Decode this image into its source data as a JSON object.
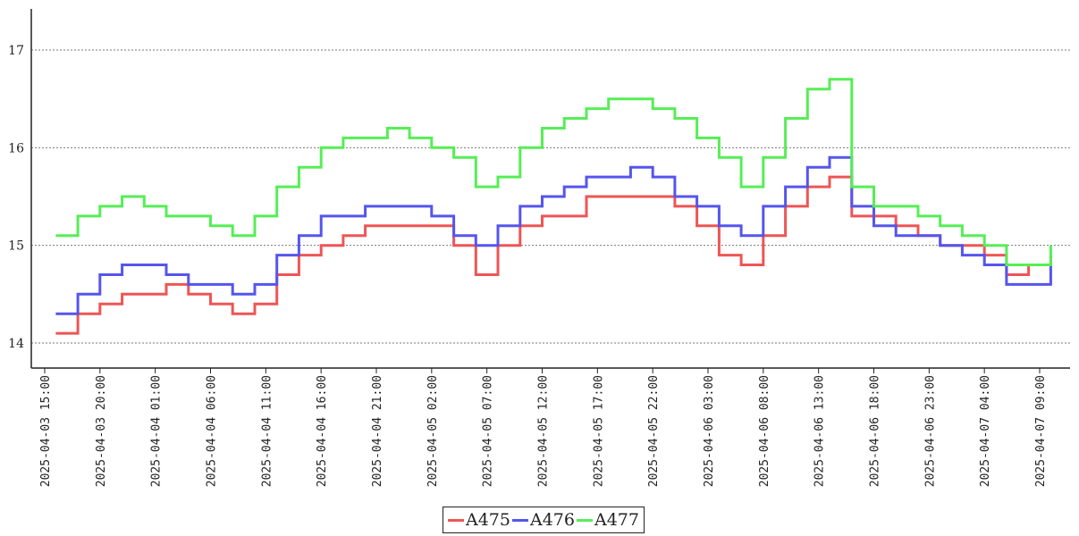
{
  "chart_data": {
    "type": "line",
    "step": true,
    "title": "",
    "xlabel": "",
    "ylabel": "",
    "ylim": [
      13.7,
      17.4
    ],
    "yticks": [
      14,
      15,
      16,
      17
    ],
    "grid": "horizontal dotted",
    "legend_position": "bottom-center",
    "x": [
      "2025-04-03 16:00",
      "2025-04-03 18:00",
      "2025-04-03 20:00",
      "2025-04-03 22:00",
      "2025-04-04 00:00",
      "2025-04-04 02:00",
      "2025-04-04 04:00",
      "2025-04-04 06:00",
      "2025-04-04 08:00",
      "2025-04-04 10:00",
      "2025-04-04 12:00",
      "2025-04-04 14:00",
      "2025-04-04 16:00",
      "2025-04-04 18:00",
      "2025-04-04 20:00",
      "2025-04-04 22:00",
      "2025-04-05 00:00",
      "2025-04-05 02:00",
      "2025-04-05 04:00",
      "2025-04-05 06:00",
      "2025-04-05 08:00",
      "2025-04-05 10:00",
      "2025-04-05 12:00",
      "2025-04-05 14:00",
      "2025-04-05 16:00",
      "2025-04-05 18:00",
      "2025-04-05 20:00",
      "2025-04-05 22:00",
      "2025-04-06 00:00",
      "2025-04-06 02:00",
      "2025-04-06 04:00",
      "2025-04-06 06:00",
      "2025-04-06 08:00",
      "2025-04-06 10:00",
      "2025-04-06 12:00",
      "2025-04-06 14:00",
      "2025-04-06 16:00",
      "2025-04-06 18:00",
      "2025-04-06 20:00",
      "2025-04-06 22:00",
      "2025-04-07 00:00",
      "2025-04-07 02:00",
      "2025-04-07 04:00",
      "2025-04-07 06:00",
      "2025-04-07 08:00",
      "2025-04-07 10:00"
    ],
    "series": [
      {
        "name": "A475",
        "color": "#ee5555",
        "values": [
          14.1,
          14.3,
          14.4,
          14.5,
          14.5,
          14.6,
          14.5,
          14.4,
          14.3,
          14.4,
          14.7,
          14.9,
          15.0,
          15.1,
          15.2,
          15.2,
          15.2,
          15.2,
          15.0,
          14.7,
          15.0,
          15.2,
          15.3,
          15.3,
          15.5,
          15.5,
          15.5,
          15.5,
          15.4,
          15.2,
          14.9,
          14.8,
          15.1,
          15.4,
          15.6,
          15.7,
          15.3,
          15.3,
          15.2,
          15.1,
          15.0,
          15.0,
          14.9,
          14.7,
          14.8,
          14.9
        ]
      },
      {
        "name": "A476",
        "color": "#5555ee",
        "values": [
          14.3,
          14.5,
          14.7,
          14.8,
          14.8,
          14.7,
          14.6,
          14.6,
          14.5,
          14.6,
          14.9,
          15.1,
          15.3,
          15.3,
          15.4,
          15.4,
          15.4,
          15.3,
          15.1,
          15.0,
          15.2,
          15.4,
          15.5,
          15.6,
          15.7,
          15.7,
          15.8,
          15.7,
          15.5,
          15.4,
          15.2,
          15.1,
          15.4,
          15.6,
          15.8,
          15.9,
          15.4,
          15.2,
          15.1,
          15.1,
          15.0,
          14.9,
          14.8,
          14.6,
          14.6,
          14.8
        ]
      },
      {
        "name": "A477",
        "color": "#55ee55",
        "values": [
          15.1,
          15.3,
          15.4,
          15.5,
          15.4,
          15.3,
          15.3,
          15.2,
          15.1,
          15.3,
          15.6,
          15.8,
          16.0,
          16.1,
          16.1,
          16.2,
          16.1,
          16.0,
          15.9,
          15.6,
          15.7,
          16.0,
          16.2,
          16.3,
          16.4,
          16.5,
          16.5,
          16.4,
          16.3,
          16.1,
          15.9,
          15.6,
          15.9,
          16.3,
          16.6,
          16.7,
          15.6,
          15.4,
          15.4,
          15.3,
          15.2,
          15.1,
          15.0,
          14.8,
          14.8,
          15.0
        ]
      }
    ],
    "xtick_labels": [
      "2025-04-03 15:00",
      "2025-04-03 20:00",
      "2025-04-04 01:00",
      "2025-04-04 06:00",
      "2025-04-04 11:00",
      "2025-04-04 16:00",
      "2025-04-04 21:00",
      "2025-04-05 02:00",
      "2025-04-05 07:00",
      "2025-04-05 12:00",
      "2025-04-05 17:00",
      "2025-04-05 22:00",
      "2025-04-06 03:00",
      "2025-04-06 08:00",
      "2025-04-06 13:00",
      "2025-04-06 18:00",
      "2025-04-06 23:00",
      "2025-04-07 04:00",
      "2025-04-07 09:00"
    ]
  },
  "legend": {
    "items": [
      {
        "label": "A475",
        "color": "#ee5555"
      },
      {
        "label": "A476",
        "color": "#5555ee"
      },
      {
        "label": "A477",
        "color": "#55ee55"
      }
    ]
  }
}
